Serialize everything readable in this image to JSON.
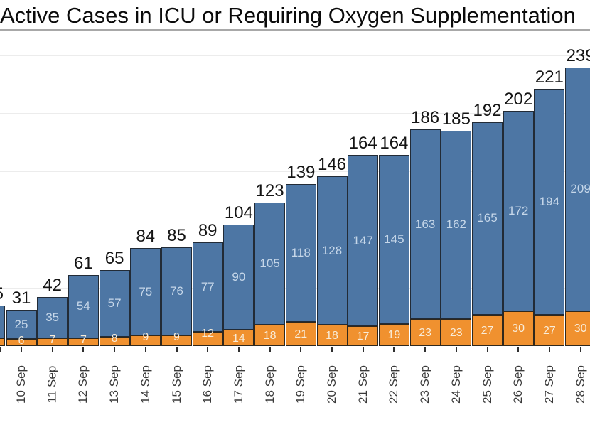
{
  "header": {
    "title": "Active Cases in ICU or Requiring Oxygen Supplementation",
    "title_clipped_right": true
  },
  "chart_data": {
    "type": "bar",
    "stacked": true,
    "title": "Active Cases in ICU or Requiring Oxygen Supplementation",
    "xlabel": "",
    "ylabel": "",
    "legend": "none",
    "grid": "horizontal",
    "gridline_values": [
      50,
      100,
      150,
      200,
      250
    ],
    "ylim": [
      0,
      298
    ],
    "categories": [
      "10 Sep",
      "11 Sep",
      "12 Sep",
      "13 Sep",
      "14 Sep",
      "15 Sep",
      "16 Sep",
      "17 Sep",
      "18 Sep",
      "19 Sep",
      "20 Sep",
      "21 Sep",
      "22 Sep",
      "23 Sep",
      "24 Sep",
      "25 Sep",
      "26 Sep",
      "27 Sep",
      "28 Sep"
    ],
    "series": [
      {
        "name": "bottom-orange-segment",
        "color": "#f0912f",
        "label_color": "#f8ecd9",
        "values": [
          6,
          7,
          7,
          8,
          9,
          9,
          12,
          14,
          18,
          21,
          18,
          17,
          19,
          23,
          23,
          27,
          30,
          27,
          30
        ]
      },
      {
        "name": "top-blue-segment",
        "color": "#4d76a4",
        "label_color": "#c6d7e9",
        "values": [
          25,
          35,
          54,
          57,
          75,
          76,
          77,
          90,
          105,
          118,
          128,
          147,
          145,
          163,
          162,
          165,
          172,
          194,
          209
        ]
      }
    ],
    "totals": [
      31,
      42,
      61,
      65,
      84,
      85,
      89,
      104,
      123,
      139,
      146,
      164,
      164,
      186,
      185,
      192,
      202,
      221,
      239
    ],
    "partial_left_bar": {
      "clipped": true,
      "approx_total": 35,
      "approx_bottom": 7,
      "approx_top": 28,
      "label_fragment_visible": true
    }
  },
  "colors": {
    "background": "#ffffff",
    "bar_blue": "#4d76a4",
    "bar_orange": "#f0912f",
    "bar_border": "#222b36",
    "total_label": "#151515",
    "blue_value_label": "#c6d7e9",
    "orange_value_label": "#f8ecd9",
    "axis_label": "#3a3a3a",
    "gridline": "#ececec",
    "title_divider": "#a8a8a8"
  }
}
